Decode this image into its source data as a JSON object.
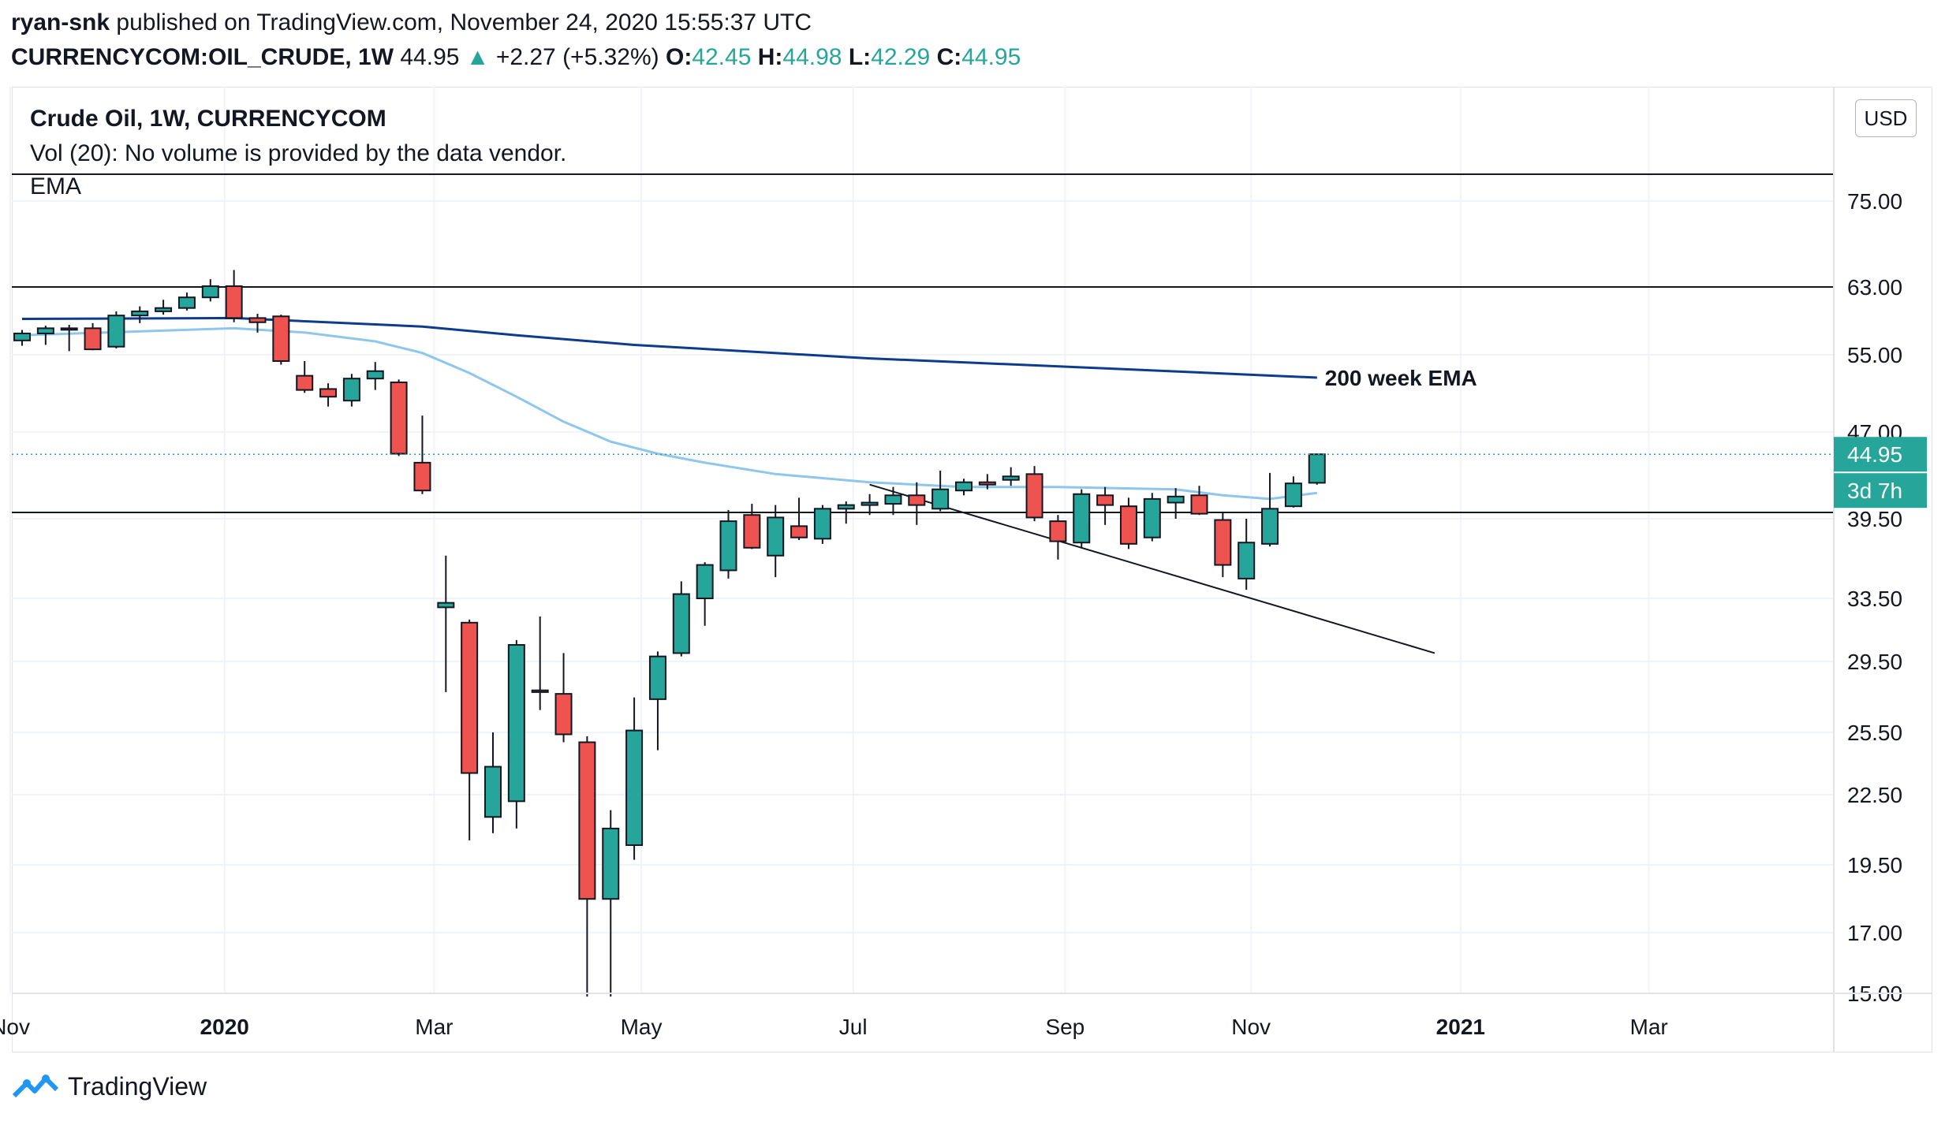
{
  "header": {
    "author": "ryan-snk",
    "published_text": "published on TradingView.com, November 24, 2020 15:55:37 UTC",
    "symbol_line": "CURRENCYCOM:OIL_CRUDE, 1W",
    "last": "44.95",
    "change_arrow": "▲",
    "change": "+2.27 (+5.32%)",
    "o_label": "O:",
    "o": "42.45",
    "h_label": "H:",
    "h": "44.98",
    "l_label": "L:",
    "l": "42.29",
    "c_label": "C:",
    "c": "44.95"
  },
  "legend": {
    "title": "Crude Oil, 1W, CURRENCYCOM",
    "volume": "Vol (20): No volume is provided by the data vendor.",
    "ema": "EMA"
  },
  "currency_button": "USD",
  "footer": {
    "brand": "TradingView"
  },
  "colors": {
    "up": "#26a69a",
    "down": "#ef5350",
    "ema200": "#0d3c8c",
    "ema_fast": "#8ec6ec",
    "axis_text": "#131722",
    "grid": "#f0f3fa"
  },
  "chart_data": {
    "type": "candlestick",
    "interval": "1W",
    "price_axis_ticks": [
      "75.00",
      "63.00",
      "55.00",
      "47.00",
      "39.50",
      "33.50",
      "29.50",
      "25.50",
      "22.50",
      "19.50",
      "17.00",
      "15.00"
    ],
    "time_axis_ticks": [
      {
        "label": "Nov",
        "bold": false
      },
      {
        "label": "2020",
        "bold": true
      },
      {
        "label": "Mar",
        "bold": false
      },
      {
        "label": "May",
        "bold": false
      },
      {
        "label": "Jul",
        "bold": false
      },
      {
        "label": "Sep",
        "bold": false
      },
      {
        "label": "Nov",
        "bold": false
      },
      {
        "label": "2021",
        "bold": true
      },
      {
        "label": "Mar",
        "bold": false
      }
    ],
    "last_price_label": "44.95",
    "countdown_label": "3d 7h",
    "annotation": "200 week EMA",
    "horizontal_levels": [
      80.0,
      63.0,
      40.0
    ],
    "trendline": {
      "start": {
        "week": 36,
        "price": 42.3
      },
      "end": {
        "week": 60,
        "price": 30.0
      }
    },
    "candles": [
      {
        "o": 56.6,
        "h": 57.8,
        "l": 56.0,
        "c": 57.4
      },
      {
        "o": 57.4,
        "h": 58.3,
        "l": 56.1,
        "c": 58.0
      },
      {
        "o": 58.0,
        "h": 58.4,
        "l": 55.4,
        "c": 57.9
      },
      {
        "o": 58.0,
        "h": 58.6,
        "l": 55.5,
        "c": 55.6
      },
      {
        "o": 55.9,
        "h": 60.0,
        "l": 55.7,
        "c": 59.5
      },
      {
        "o": 59.5,
        "h": 60.6,
        "l": 58.6,
        "c": 60.0
      },
      {
        "o": 60.0,
        "h": 61.4,
        "l": 59.6,
        "c": 60.4
      },
      {
        "o": 60.4,
        "h": 62.3,
        "l": 60.1,
        "c": 61.7
      },
      {
        "o": 61.7,
        "h": 64.0,
        "l": 61.2,
        "c": 63.1
      },
      {
        "o": 63.1,
        "h": 65.2,
        "l": 58.7,
        "c": 59.2
      },
      {
        "o": 59.2,
        "h": 59.7,
        "l": 57.5,
        "c": 58.7
      },
      {
        "o": 59.4,
        "h": 59.6,
        "l": 53.9,
        "c": 54.3
      },
      {
        "o": 52.7,
        "h": 54.3,
        "l": 50.9,
        "c": 51.2
      },
      {
        "o": 51.3,
        "h": 51.9,
        "l": 49.5,
        "c": 50.5
      },
      {
        "o": 50.1,
        "h": 52.9,
        "l": 49.5,
        "c": 52.4
      },
      {
        "o": 52.4,
        "h": 54.2,
        "l": 51.2,
        "c": 53.2
      },
      {
        "o": 52.0,
        "h": 52.3,
        "l": 44.8,
        "c": 45.0
      },
      {
        "o": 44.2,
        "h": 48.6,
        "l": 41.5,
        "c": 41.8
      },
      {
        "o": 32.9,
        "h": 36.6,
        "l": 27.7,
        "c": 33.2
      },
      {
        "o": 31.9,
        "h": 32.1,
        "l": 20.5,
        "c": 23.5
      },
      {
        "o": 21.5,
        "h": 25.5,
        "l": 20.8,
        "c": 23.8
      },
      {
        "o": 22.2,
        "h": 30.8,
        "l": 21.0,
        "c": 30.5
      },
      {
        "o": 27.8,
        "h": 32.3,
        "l": 26.7,
        "c": 27.7
      },
      {
        "o": 27.6,
        "h": 30.0,
        "l": 25.0,
        "c": 25.4
      },
      {
        "o": 25.0,
        "h": 25.3,
        "l": 14.9,
        "c": 18.2
      },
      {
        "o": 18.2,
        "h": 21.8,
        "l": 14.9,
        "c": 21.0
      },
      {
        "o": 20.3,
        "h": 27.4,
        "l": 19.7,
        "c": 25.6
      },
      {
        "o": 27.3,
        "h": 30.1,
        "l": 24.6,
        "c": 29.8
      },
      {
        "o": 30.0,
        "h": 34.7,
        "l": 29.8,
        "c": 33.8
      },
      {
        "o": 33.5,
        "h": 36.1,
        "l": 31.7,
        "c": 35.9
      },
      {
        "o": 35.5,
        "h": 40.2,
        "l": 34.9,
        "c": 39.3
      },
      {
        "o": 39.8,
        "h": 40.7,
        "l": 37.1,
        "c": 37.2
      },
      {
        "o": 36.6,
        "h": 40.6,
        "l": 35.0,
        "c": 39.6
      },
      {
        "o": 38.9,
        "h": 41.2,
        "l": 37.8,
        "c": 38.0
      },
      {
        "o": 37.9,
        "h": 40.6,
        "l": 37.5,
        "c": 40.3
      },
      {
        "o": 40.3,
        "h": 40.9,
        "l": 39.1,
        "c": 40.6
      },
      {
        "o": 40.6,
        "h": 41.5,
        "l": 39.8,
        "c": 40.8
      },
      {
        "o": 40.7,
        "h": 42.1,
        "l": 39.8,
        "c": 41.4
      },
      {
        "o": 41.4,
        "h": 42.5,
        "l": 39.0,
        "c": 40.6
      },
      {
        "o": 40.3,
        "h": 43.5,
        "l": 40.1,
        "c": 41.9
      },
      {
        "o": 41.8,
        "h": 42.8,
        "l": 41.4,
        "c": 42.5
      },
      {
        "o": 42.5,
        "h": 43.2,
        "l": 41.9,
        "c": 42.3
      },
      {
        "o": 42.7,
        "h": 43.8,
        "l": 42.2,
        "c": 43.0
      },
      {
        "o": 43.2,
        "h": 43.9,
        "l": 39.3,
        "c": 39.6
      },
      {
        "o": 39.3,
        "h": 39.8,
        "l": 36.3,
        "c": 37.7
      },
      {
        "o": 37.6,
        "h": 41.9,
        "l": 37.2,
        "c": 41.5
      },
      {
        "o": 41.4,
        "h": 42.1,
        "l": 39.0,
        "c": 40.6
      },
      {
        "o": 40.5,
        "h": 41.2,
        "l": 37.1,
        "c": 37.5
      },
      {
        "o": 38.0,
        "h": 41.6,
        "l": 37.7,
        "c": 41.1
      },
      {
        "o": 40.8,
        "h": 42.0,
        "l": 39.5,
        "c": 41.3
      },
      {
        "o": 41.4,
        "h": 42.2,
        "l": 39.8,
        "c": 39.9
      },
      {
        "o": 39.4,
        "h": 40.0,
        "l": 35.0,
        "c": 35.9
      },
      {
        "o": 34.9,
        "h": 39.5,
        "l": 34.1,
        "c": 37.6
      },
      {
        "o": 37.5,
        "h": 43.3,
        "l": 37.3,
        "c": 40.3
      },
      {
        "o": 40.5,
        "h": 43.0,
        "l": 40.4,
        "c": 42.4
      },
      {
        "o": 42.45,
        "h": 44.98,
        "l": 42.29,
        "c": 44.95
      }
    ],
    "ema200": [
      {
        "week": 0,
        "value": 59.1
      },
      {
        "week": 9,
        "value": 59.2
      },
      {
        "week": 17,
        "value": 58.2
      },
      {
        "week": 21,
        "value": 57.2
      },
      {
        "week": 26,
        "value": 56.1
      },
      {
        "week": 36,
        "value": 54.6
      },
      {
        "week": 46,
        "value": 53.5
      },
      {
        "week": 55,
        "value": 52.5
      }
    ],
    "ema_fast": [
      {
        "week": 0,
        "value": 57.2
      },
      {
        "week": 9,
        "value": 58.0
      },
      {
        "week": 12,
        "value": 57.5
      },
      {
        "week": 15,
        "value": 56.5
      },
      {
        "week": 17,
        "value": 55.2
      },
      {
        "week": 19,
        "value": 53.0
      },
      {
        "week": 21,
        "value": 50.5
      },
      {
        "week": 23,
        "value": 48.0
      },
      {
        "week": 25,
        "value": 46.1
      },
      {
        "week": 27,
        "value": 45.0
      },
      {
        "week": 29,
        "value": 44.2
      },
      {
        "week": 32,
        "value": 43.2
      },
      {
        "week": 36,
        "value": 42.5
      },
      {
        "week": 40,
        "value": 42.1
      },
      {
        "week": 44,
        "value": 42.1
      },
      {
        "week": 49,
        "value": 41.9
      },
      {
        "week": 51,
        "value": 41.4
      },
      {
        "week": 53,
        "value": 41.1
      },
      {
        "week": 55,
        "value": 41.6
      }
    ]
  }
}
